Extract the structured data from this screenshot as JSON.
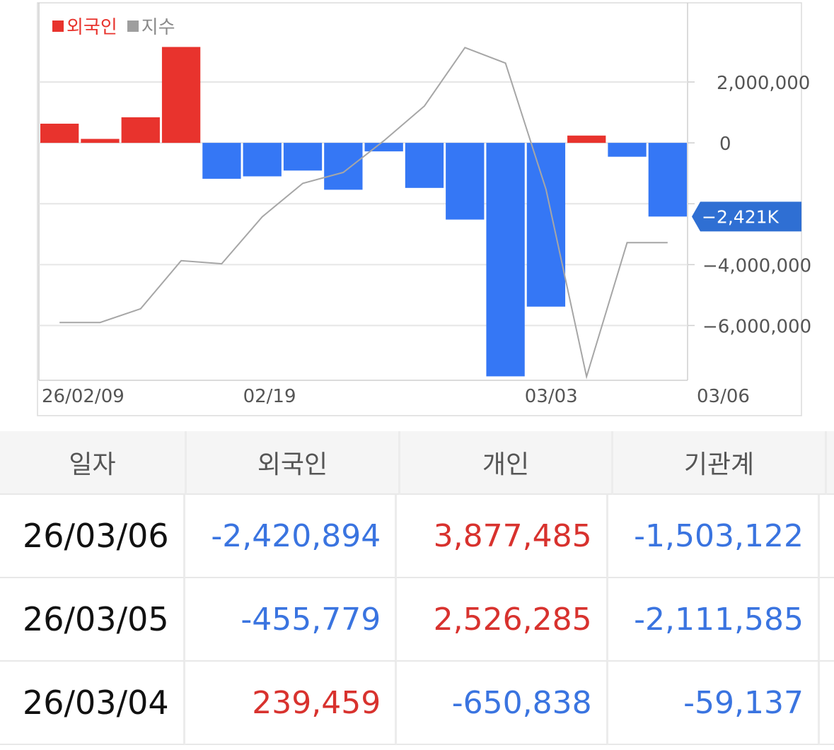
{
  "chart_data": {
    "type": "bar+line",
    "legend": [
      {
        "label": "외국인",
        "color": "#e8332d"
      },
      {
        "label": "지수",
        "color": "#9e9e9e"
      }
    ],
    "x_tick_labels": [
      "26/02/09",
      "02/19",
      "03/03",
      "03/06"
    ],
    "y_tick_labels": [
      "2,000,000",
      "0",
      "-4,000,000",
      "-6,000,000"
    ],
    "ylim": [
      -7800000,
      4600000
    ],
    "last_value_marker": "-2,421K",
    "series": [
      {
        "name": "외국인",
        "kind": "bar",
        "pos_color": "#e8332d",
        "neg_color": "#3577f5",
        "values": [
          630000,
          130000,
          840000,
          3150000,
          -1180000,
          -1100000,
          -910000,
          -1540000,
          -280000,
          -1480000,
          -2520000,
          -7670000,
          -5380000,
          239459,
          -455779,
          -2420894
        ]
      },
      {
        "name": "지수",
        "kind": "line",
        "color": "#a6a6a6",
        "values": [
          -5900000,
          -5900000,
          -5450000,
          -3870000,
          -3970000,
          -2430000,
          -1330000,
          -970000,
          70000,
          1210000,
          3130000,
          2620000,
          -1530000,
          -7680000,
          -3280000,
          -3280000
        ]
      }
    ]
  },
  "table": {
    "headers": [
      "일자",
      "외국인",
      "개인",
      "기관계"
    ],
    "rows": [
      {
        "date": "26/03/06",
        "foreign": "-2,420,894",
        "individual": "3,877,485",
        "institution": "-1,503,122"
      },
      {
        "date": "26/03/05",
        "foreign": "-455,779",
        "individual": "2,526,285",
        "institution": "-2,111,585"
      },
      {
        "date": "26/03/04",
        "foreign": "239,459",
        "individual": "-650,838",
        "institution": "-59,137"
      }
    ]
  }
}
